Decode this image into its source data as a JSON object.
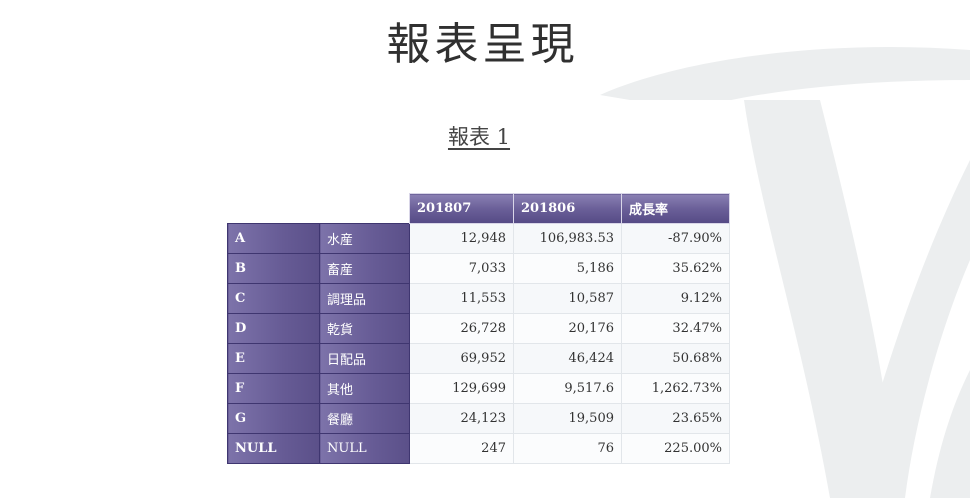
{
  "page": {
    "title": "報表呈現",
    "report_title": "報表 1"
  },
  "table": {
    "columns": [
      "201807",
      "201806",
      "成長率"
    ],
    "rows": [
      {
        "code": "A",
        "name": "水産",
        "v1": "12,948",
        "v2": "106,983.53",
        "rate": "-87.90%"
      },
      {
        "code": "B",
        "name": "畜産",
        "v1": "7,033",
        "v2": "5,186",
        "rate": "35.62%"
      },
      {
        "code": "C",
        "name": "調理品",
        "v1": "11,553",
        "v2": "10,587",
        "rate": "9.12%"
      },
      {
        "code": "D",
        "name": "乾貨",
        "v1": "26,728",
        "v2": "20,176",
        "rate": "32.47%"
      },
      {
        "code": "E",
        "name": "日配品",
        "v1": "69,952",
        "v2": "46,424",
        "rate": "50.68%"
      },
      {
        "code": "F",
        "name": "其他",
        "v1": "129,699",
        "v2": "9,517.6",
        "rate": "1,262.73%"
      },
      {
        "code": "G",
        "name": "餐廳",
        "v1": "24,123",
        "v2": "19,509",
        "rate": "23.65%"
      },
      {
        "code": "NULL",
        "name": "NULL",
        "v1": "247",
        "v2": "76",
        "rate": "225.00%"
      }
    ]
  },
  "colors": {
    "header_purple": "#6a5f98",
    "cell_bg": "#f6f8fa",
    "swoosh_gray": "#eceeef"
  }
}
